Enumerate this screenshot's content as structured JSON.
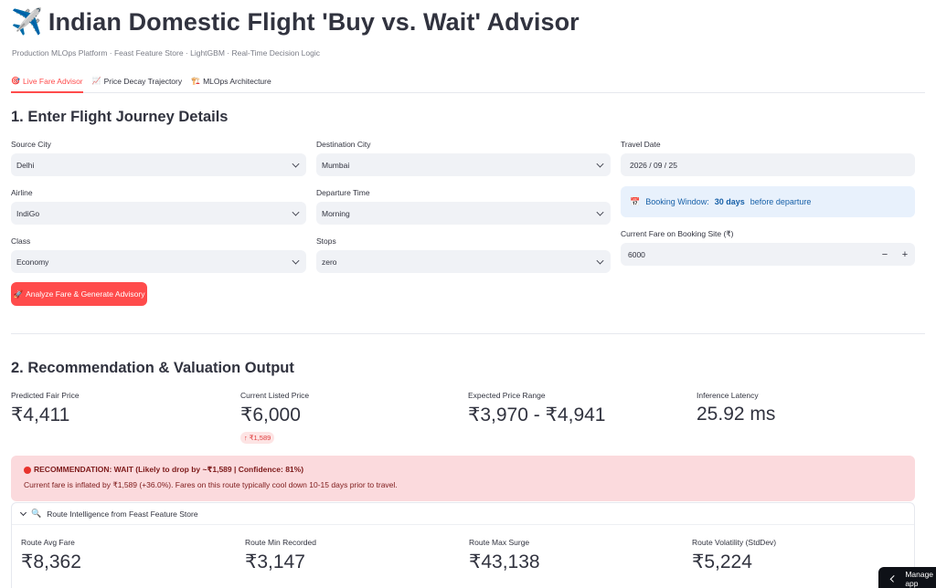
{
  "header": {
    "title_icon": "✈️",
    "title": "Indian Domestic Flight 'Buy vs. Wait' Advisor",
    "caption": "Production MLOps Platform · Feast Feature Store · LightGBM · Real-Time Decision Logic"
  },
  "tabs": [
    {
      "icon": "🎯",
      "label": "Live Fare Advisor",
      "active": true
    },
    {
      "icon": "📈",
      "label": "Price Decay Trajectory",
      "active": false
    },
    {
      "icon": "🏗️",
      "label": "MLOps Architecture",
      "active": false
    }
  ],
  "section1": {
    "heading": "1. Enter Flight Journey Details",
    "source_city": {
      "label": "Source City",
      "value": "Delhi"
    },
    "destination_city": {
      "label": "Destination City",
      "value": "Mumbai"
    },
    "travel_date": {
      "label": "Travel Date",
      "value": "2026 / 09 / 25"
    },
    "airline": {
      "label": "Airline",
      "value": "IndiGo"
    },
    "departure_time": {
      "label": "Departure Time",
      "value": "Morning"
    },
    "booking_window": {
      "icon": "📅",
      "prefix": "Booking Window:",
      "bold": "30 days",
      "suffix": "before departure"
    },
    "travel_class": {
      "label": "Class",
      "value": "Economy"
    },
    "stops": {
      "label": "Stops",
      "value": "zero"
    },
    "current_fare": {
      "label": "Current Fare on Booking Site (₹)",
      "value": "6000",
      "minus": "−",
      "plus": "+"
    },
    "analyze_button": {
      "icon": "🚀",
      "label": "Analyze Fare & Generate Advisory"
    }
  },
  "section2": {
    "heading": "2. Recommendation & Valuation Output",
    "metrics": [
      {
        "label": "Predicted Fair Price",
        "value": "₹4,411"
      },
      {
        "label": "Current Listed Price",
        "value": "₹6,000"
      },
      {
        "label": "Expected Price Range",
        "value": "₹3,970 - ₹4,941"
      },
      {
        "label": "Inference Latency",
        "value": "25.92 ms"
      }
    ],
    "delta": {
      "arrow": "↑",
      "value": "₹1,589"
    },
    "alert": {
      "title": "RECOMMENDATION: WAIT (Likely to drop by ~₹1,589 | Confidence: 81%)",
      "body": "Current fare is inflated by ₹1,589 (+36.0%). Fares on this route typically cool down 10-15 days prior to travel."
    },
    "expander": {
      "label": "Route Intelligence from Feast Feature Store",
      "metrics": [
        {
          "label": "Route Avg Fare",
          "value": "₹8,362"
        },
        {
          "label": "Route Min Recorded",
          "value": "₹3,147"
        },
        {
          "label": "Route Max Surge",
          "value": "₹43,138"
        },
        {
          "label": "Route Volatility (StdDev)",
          "value": "₹5,224"
        }
      ]
    }
  },
  "manage": {
    "label": "Manage app"
  }
}
